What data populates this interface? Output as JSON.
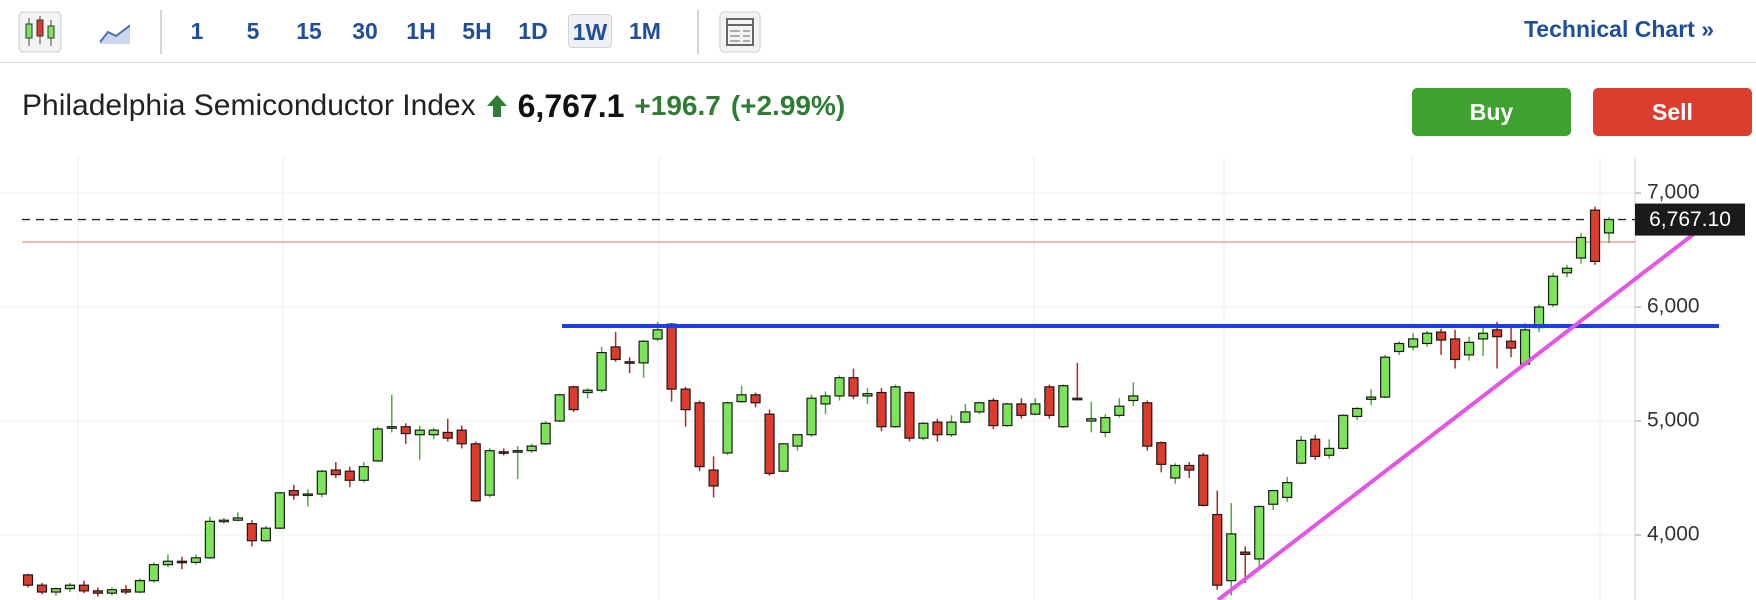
{
  "toolbar": {
    "intervals": [
      "1",
      "5",
      "15",
      "30",
      "1H",
      "5H",
      "1D",
      "1W",
      "1M"
    ],
    "selected": "1W",
    "technical_chart": "Technical Chart »"
  },
  "header": {
    "title": "Philadelphia Semiconductor Index",
    "price": "6,767.1",
    "change": "+196.7",
    "change_pct": "(+2.99%)"
  },
  "buttons": {
    "buy": "Buy",
    "sell": "Sell"
  },
  "chart_data": {
    "type": "candlestick",
    "up_color": "#7ee35a",
    "down_color": "#dc3b2e",
    "ylim": [
      3430,
      7316
    ],
    "yticks": [
      {
        "value": 4000,
        "label": "4,000"
      },
      {
        "value": 5000,
        "label": "5,000"
      },
      {
        "value": 6000,
        "label": "6,000"
      },
      {
        "value": 7000,
        "label": "7,000"
      }
    ],
    "grid": true,
    "last_price": 6767.1,
    "last_price_label": "6,767.10",
    "prev_close": 6570.4,
    "horizontal_level": {
      "value": 5833,
      "color": "#1c3fe0"
    },
    "trendline": {
      "values": [
        3430,
        6696
      ],
      "color": "#e455e6"
    },
    "ohlc": [
      [
        3650,
        3660,
        3540,
        3560
      ],
      [
        3560,
        3580,
        3480,
        3500
      ],
      [
        3500,
        3540,
        3470,
        3530
      ],
      [
        3530,
        3580,
        3500,
        3560
      ],
      [
        3560,
        3600,
        3490,
        3510
      ],
      [
        3510,
        3540,
        3460,
        3490
      ],
      [
        3490,
        3540,
        3470,
        3520
      ],
      [
        3520,
        3560,
        3480,
        3500
      ],
      [
        3500,
        3620,
        3490,
        3600
      ],
      [
        3600,
        3760,
        3580,
        3740
      ],
      [
        3740,
        3830,
        3720,
        3770
      ],
      [
        3770,
        3810,
        3700,
        3760
      ],
      [
        3760,
        3830,
        3740,
        3800
      ],
      [
        3800,
        4160,
        3790,
        4120
      ],
      [
        4120,
        4150,
        4100,
        4130
      ],
      [
        4130,
        4200,
        4120,
        4150
      ],
      [
        4100,
        4130,
        3900,
        3950
      ],
      [
        3950,
        4080,
        3940,
        4060
      ],
      [
        4060,
        4380,
        4050,
        4370
      ],
      [
        4390,
        4440,
        4310,
        4350
      ],
      [
        4350,
        4400,
        4250,
        4360
      ],
      [
        4360,
        4570,
        4330,
        4560
      ],
      [
        4570,
        4640,
        4500,
        4530
      ],
      [
        4560,
        4600,
        4420,
        4480
      ],
      [
        4480,
        4640,
        4460,
        4600
      ],
      [
        4650,
        4950,
        4640,
        4930
      ],
      [
        4950,
        5230,
        4900,
        4950
      ],
      [
        4950,
        4980,
        4800,
        4890
      ],
      [
        4880,
        4960,
        4660,
        4920
      ],
      [
        4880,
        4940,
        4840,
        4920
      ],
      [
        4900,
        5020,
        4820,
        4850
      ],
      [
        4920,
        4960,
        4760,
        4800
      ],
      [
        4800,
        4820,
        4290,
        4300
      ],
      [
        4350,
        4760,
        4330,
        4740
      ],
      [
        4730,
        4760,
        4700,
        4720
      ],
      [
        4730,
        4780,
        4490,
        4740
      ],
      [
        4740,
        4800,
        4720,
        4780
      ],
      [
        4800,
        5000,
        4790,
        4980
      ],
      [
        5000,
        5240,
        4990,
        5230
      ],
      [
        5300,
        5310,
        5080,
        5100
      ],
      [
        5250,
        5290,
        5200,
        5270
      ],
      [
        5270,
        5650,
        5250,
        5600
      ],
      [
        5650,
        5780,
        5520,
        5540
      ],
      [
        5520,
        5560,
        5420,
        5510
      ],
      [
        5510,
        5710,
        5380,
        5700
      ],
      [
        5720,
        5870,
        5700,
        5800
      ],
      [
        5850,
        5860,
        5170,
        5280
      ],
      [
        5280,
        5300,
        4950,
        5100
      ],
      [
        5160,
        5180,
        4560,
        4600
      ],
      [
        4570,
        4690,
        4330,
        4430
      ],
      [
        4720,
        5170,
        4700,
        5160
      ],
      [
        5170,
        5310,
        5160,
        5230
      ],
      [
        5230,
        5250,
        5120,
        5160
      ],
      [
        5060,
        5100,
        4520,
        4540
      ],
      [
        4560,
        4800,
        4550,
        4800
      ],
      [
        4780,
        4880,
        4740,
        4880
      ],
      [
        4880,
        5230,
        4860,
        5200
      ],
      [
        5150,
        5260,
        5060,
        5220
      ],
      [
        5220,
        5400,
        5180,
        5380
      ],
      [
        5380,
        5460,
        5190,
        5220
      ],
      [
        5220,
        5290,
        5150,
        5240
      ],
      [
        5250,
        5290,
        4910,
        4950
      ],
      [
        4950,
        5320,
        4940,
        5300
      ],
      [
        5250,
        5260,
        4820,
        4850
      ],
      [
        4850,
        4990,
        4830,
        4980
      ],
      [
        4990,
        5020,
        4820,
        4880
      ],
      [
        4880,
        5050,
        4860,
        4990
      ],
      [
        4990,
        5150,
        4980,
        5080
      ],
      [
        5080,
        5170,
        5060,
        5160
      ],
      [
        5180,
        5200,
        4930,
        4960
      ],
      [
        4960,
        5160,
        4950,
        5150
      ],
      [
        5150,
        5200,
        5020,
        5050
      ],
      [
        5060,
        5200,
        5050,
        5150
      ],
      [
        5300,
        5320,
        5020,
        5050
      ],
      [
        4950,
        5320,
        4940,
        5310
      ],
      [
        5200,
        5510,
        5180,
        5190
      ],
      [
        5000,
        5170,
        4900,
        5020
      ],
      [
        4900,
        5060,
        4860,
        5030
      ],
      [
        5050,
        5200,
        5030,
        5130
      ],
      [
        5180,
        5340,
        5130,
        5220
      ],
      [
        5160,
        5180,
        4740,
        4780
      ],
      [
        4810,
        4820,
        4550,
        4620
      ],
      [
        4500,
        4630,
        4450,
        4610
      ],
      [
        4610,
        4640,
        4500,
        4570
      ],
      [
        4700,
        4720,
        4250,
        4260
      ],
      [
        4180,
        4390,
        3520,
        3560
      ],
      [
        3600,
        4280,
        3470,
        4010
      ],
      [
        3850,
        3900,
        3580,
        3830
      ],
      [
        3790,
        4260,
        3700,
        4250
      ],
      [
        4270,
        4390,
        4220,
        4390
      ],
      [
        4330,
        4510,
        4290,
        4460
      ],
      [
        4630,
        4870,
        4620,
        4830
      ],
      [
        4840,
        4880,
        4660,
        4690
      ],
      [
        4700,
        4840,
        4670,
        4760
      ],
      [
        4760,
        5060,
        4750,
        5050
      ],
      [
        5040,
        5120,
        5010,
        5110
      ],
      [
        5190,
        5280,
        5140,
        5210
      ],
      [
        5210,
        5580,
        5200,
        5560
      ],
      [
        5610,
        5700,
        5580,
        5680
      ],
      [
        5650,
        5770,
        5620,
        5720
      ],
      [
        5680,
        5790,
        5650,
        5770
      ],
      [
        5780,
        5810,
        5580,
        5710
      ],
      [
        5720,
        5800,
        5460,
        5540
      ],
      [
        5580,
        5740,
        5530,
        5690
      ],
      [
        5720,
        5830,
        5570,
        5770
      ],
      [
        5800,
        5870,
        5460,
        5740
      ],
      [
        5700,
        5820,
        5560,
        5640
      ],
      [
        5500,
        5860,
        5480,
        5800
      ],
      [
        5820,
        6020,
        5780,
        6000
      ],
      [
        6020,
        6300,
        6000,
        6270
      ],
      [
        6300,
        6370,
        6260,
        6340
      ],
      [
        6430,
        6650,
        6380,
        6610
      ],
      [
        6850,
        6880,
        6370,
        6400
      ],
      [
        6650,
        6790,
        6560,
        6767.1
      ]
    ]
  }
}
